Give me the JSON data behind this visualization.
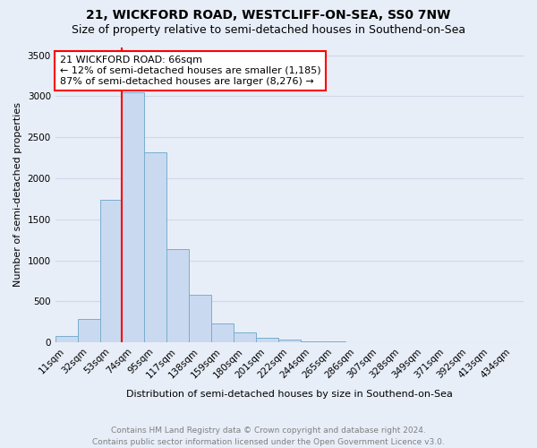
{
  "title": "21, WICKFORD ROAD, WESTCLIFF-ON-SEA, SS0 7NW",
  "subtitle": "Size of property relative to semi-detached houses in Southend-on-Sea",
  "xlabel": "Distribution of semi-detached houses by size in Southend-on-Sea",
  "ylabel": "Number of semi-detached properties",
  "footnote1": "Contains HM Land Registry data © Crown copyright and database right 2024.",
  "footnote2": "Contains public sector information licensed under the Open Government Licence v3.0.",
  "bar_labels": [
    "11sqm",
    "32sqm",
    "53sqm",
    "74sqm",
    "95sqm",
    "117sqm",
    "138sqm",
    "159sqm",
    "180sqm",
    "201sqm",
    "222sqm",
    "244sqm",
    "265sqm",
    "286sqm",
    "307sqm",
    "328sqm",
    "349sqm",
    "371sqm",
    "392sqm",
    "413sqm",
    "434sqm"
  ],
  "bar_values": [
    80,
    290,
    1740,
    3050,
    2320,
    1140,
    580,
    230,
    120,
    60,
    30,
    15,
    8,
    4,
    2,
    1,
    1,
    0,
    0,
    0,
    0
  ],
  "bar_color": "#c9daf0",
  "bar_edge_color": "#7aadcf",
  "vline_index": 2.5,
  "annotation_line1": "21 WICKFORD ROAD: 66sqm",
  "annotation_line2": "← 12% of semi-detached houses are smaller (1,185)",
  "annotation_line3": "87% of semi-detached houses are larger (8,276) →",
  "annotation_box_color": "white",
  "annotation_box_edge_color": "red",
  "vline_color": "red",
  "ylim": [
    0,
    3600
  ],
  "yticks": [
    0,
    500,
    1000,
    1500,
    2000,
    2500,
    3000,
    3500
  ],
  "background_color": "#e8eef8",
  "grid_color": "#d0d8e8",
  "title_fontsize": 10,
  "subtitle_fontsize": 9,
  "label_fontsize": 8,
  "tick_fontsize": 7.5,
  "annotation_fontsize": 8,
  "footnote_fontsize": 6.5
}
